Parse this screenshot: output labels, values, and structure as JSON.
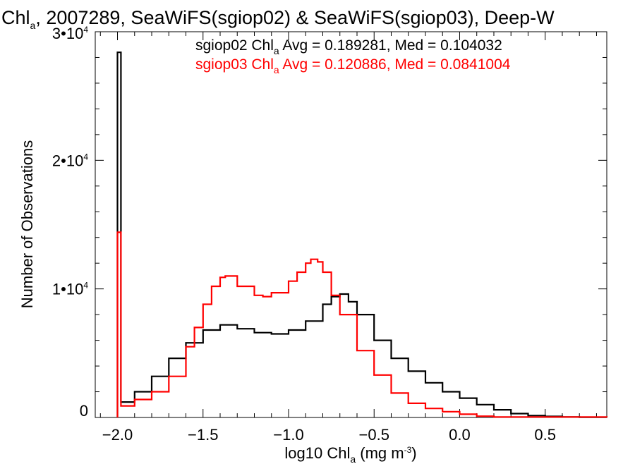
{
  "chart_data": {
    "type": "line",
    "step": true,
    "title": {
      "prefix": "Chl",
      "sub": "a",
      "rest": ", 2007289, SeaWiFS(sgiop02) & SeaWiFS(sgiop03), Deep-W"
    },
    "xlabel": {
      "prefix": "log10 Chl",
      "sub": "a",
      "rest": " (mg m",
      "sup": "-3",
      "end": ")"
    },
    "ylabel": "Number of Observations",
    "xlim": [
      -2.13,
      0.86
    ],
    "ylim": [
      0,
      30000
    ],
    "x_ticks": [
      {
        "value": -2.0,
        "label": "−2.0"
      },
      {
        "value": -1.5,
        "label": "−1.5"
      },
      {
        "value": -1.0,
        "label": "−1.0"
      },
      {
        "value": -0.5,
        "label": "−0.5"
      },
      {
        "value": 0.0,
        "label": "0.0"
      },
      {
        "value": 0.5,
        "label": "0.5"
      }
    ],
    "y_ticks": [
      {
        "value": 0,
        "label": "0",
        "exp": ""
      },
      {
        "value": 10000,
        "label": "1•10",
        "exp": "4"
      },
      {
        "value": 20000,
        "label": "2•10",
        "exp": "4"
      },
      {
        "value": 30000,
        "label": "3•10",
        "exp": "4"
      }
    ],
    "annotations": [
      {
        "prefix": "sgiop02 Chl",
        "sub": "a",
        "rest": " Avg = 0.189281, Med = 0.104032",
        "color": "#000000"
      },
      {
        "prefix": "sgiop03 Chl",
        "sub": "a",
        "rest": " Avg = 0.120886, Med = 0.0841004",
        "color": "#ff0000"
      }
    ],
    "series": [
      {
        "color": "#000000",
        "x": [
          -2.0,
          -1.98,
          -1.9,
          -1.8,
          -1.7,
          -1.6,
          -1.5,
          -1.4,
          -1.3,
          -1.2,
          -1.1,
          -1.0,
          -0.9,
          -0.8,
          -0.75,
          -0.7,
          -0.65,
          -0.6,
          -0.5,
          -0.4,
          -0.3,
          -0.2,
          -0.1,
          0.0,
          0.1,
          0.2,
          0.3,
          0.4,
          0.5,
          0.6,
          0.7,
          0.86
        ],
        "y": [
          28400,
          1200,
          2000,
          3200,
          4600,
          5800,
          6800,
          7200,
          6900,
          6600,
          6500,
          6800,
          7500,
          8800,
          9400,
          9600,
          9000,
          8000,
          6000,
          4600,
          3600,
          2700,
          2000,
          1500,
          1000,
          600,
          300,
          150,
          80,
          40,
          20,
          0
        ]
      },
      {
        "color": "#ff0000",
        "x": [
          -2.0,
          -1.98,
          -1.9,
          -1.8,
          -1.7,
          -1.6,
          -1.55,
          -1.5,
          -1.45,
          -1.4,
          -1.37,
          -1.3,
          -1.2,
          -1.15,
          -1.1,
          -1.0,
          -0.95,
          -0.9,
          -0.87,
          -0.83,
          -0.8,
          -0.75,
          -0.7,
          -0.6,
          -0.5,
          -0.4,
          -0.3,
          -0.2,
          -0.1,
          0.0,
          0.1,
          0.2,
          0.86
        ],
        "y": [
          14400,
          900,
          1400,
          2000,
          3200,
          5500,
          7000,
          8800,
          10200,
          10900,
          11000,
          10200,
          9500,
          9400,
          9700,
          10600,
          11300,
          12000,
          12300,
          12100,
          11300,
          9500,
          8000,
          5200,
          3300,
          1900,
          1100,
          700,
          450,
          250,
          100,
          40,
          0
        ]
      }
    ]
  }
}
